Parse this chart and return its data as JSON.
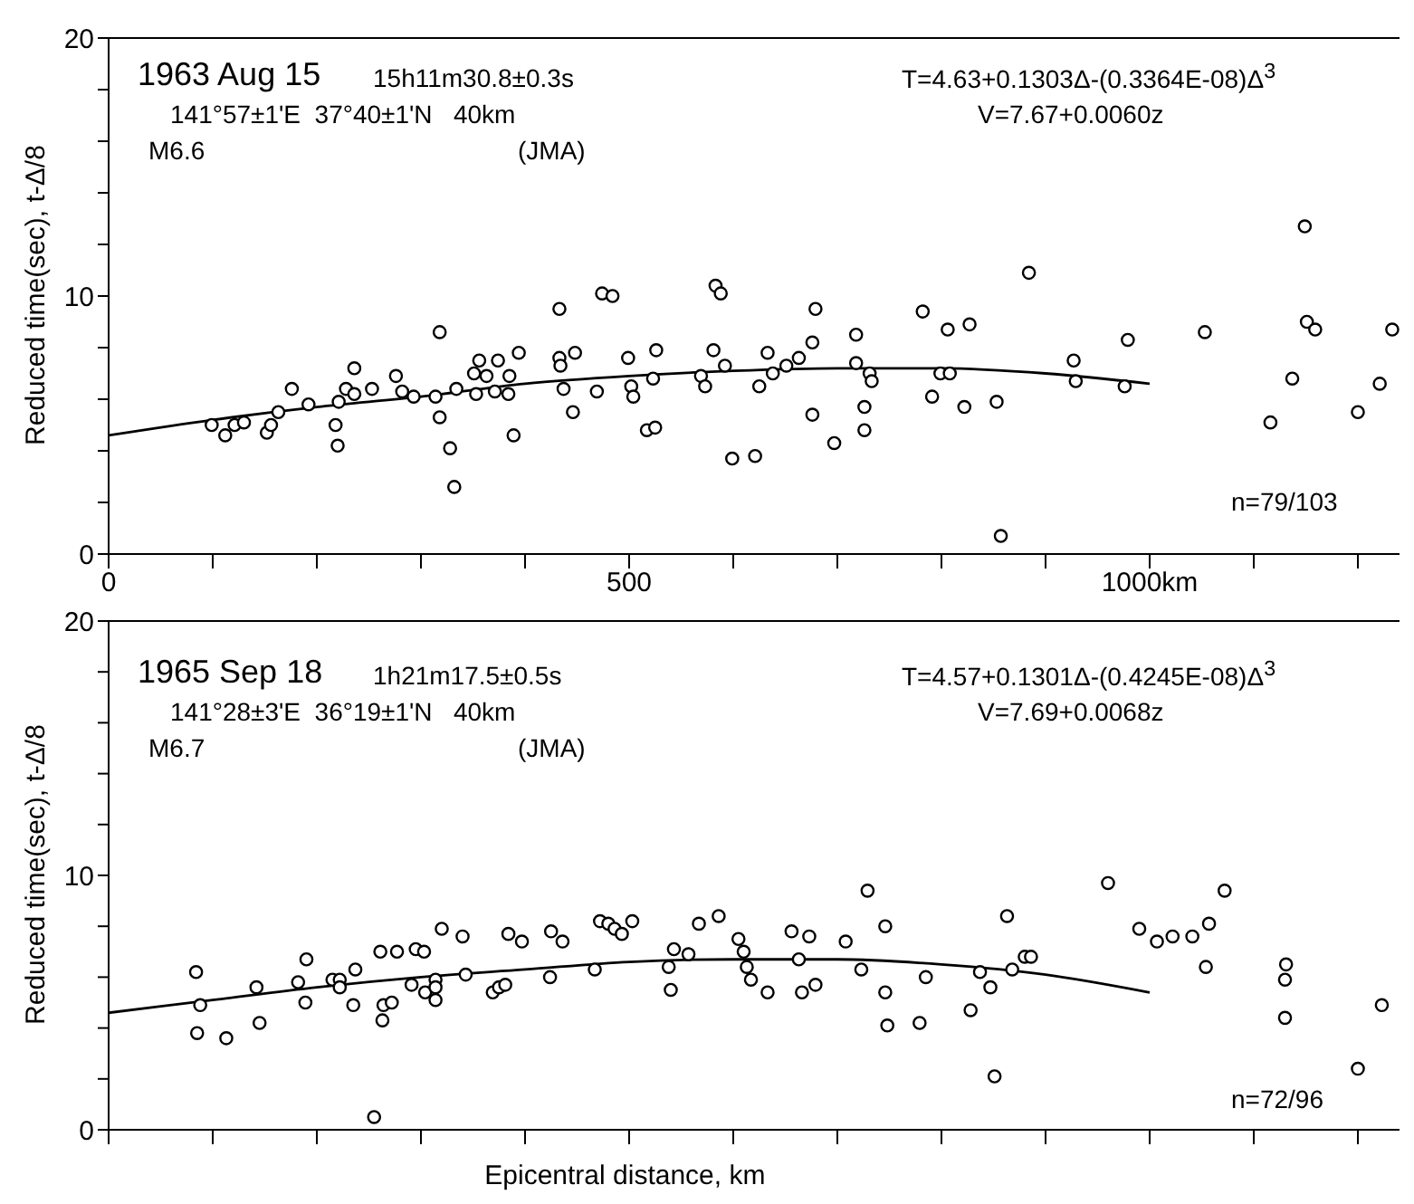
{
  "chart_data": [
    {
      "type": "scatter",
      "ylabel": "Reduced time(sec),  t-Δ/8",
      "annotations": [
        "1963 Aug 15",
        "15h11m30.8±0.3s",
        "141°57±1'E  37°40±1'N   40km",
        "M6.6",
        "(JMA)",
        "T=4.63+0.1303Δ-(0.3364E-08)Δ$^{3}$",
        "V=7.67+0.0060z",
        "n=79/103"
      ],
      "xlim": [
        0,
        1240
      ],
      "xticks": [
        0,
        {
          "value": 100,
          "label": null
        },
        {
          "value": 200,
          "label": null
        },
        {
          "value": 300,
          "label": null
        },
        {
          "value": 400,
          "label": null
        },
        500,
        {
          "value": 600,
          "label": null
        },
        {
          "value": 700,
          "label": null
        },
        {
          "value": 800,
          "label": null
        },
        {
          "value": 900,
          "label": null
        },
        {
          "value": 1000,
          "label": "1000km"
        },
        {
          "value": 1100,
          "label": null
        },
        {
          "value": 1200,
          "label": null
        }
      ],
      "ylim": [
        0,
        20
      ],
      "yticks": [
        0,
        {
          "value": 2,
          "label": null
        },
        {
          "value": 4,
          "label": null
        },
        {
          "value": 6,
          "label": null
        },
        {
          "value": 8,
          "label": null
        },
        10,
        {
          "value": 12,
          "label": null
        },
        {
          "value": 14,
          "label": null
        },
        {
          "value": 16,
          "label": null
        },
        {
          "value": 18,
          "label": null
        },
        20
      ],
      "series": [
        {
          "type": "scatter",
          "marker": "circle",
          "color": "#000000",
          "x": [
            99,
            112,
            121,
            130,
            152,
            156,
            163,
            176,
            192,
            218,
            220,
            221,
            228,
            236,
            236,
            253,
            276,
            282,
            293,
            314,
            318,
            318,
            328,
            332,
            334,
            351,
            353,
            356,
            363,
            371,
            374,
            384,
            385,
            389,
            394,
            433,
            433,
            434,
            437,
            446,
            448,
            469,
            474,
            484,
            499,
            502,
            504,
            517,
            525,
            523,
            526,
            569,
            573,
            581,
            583,
            588,
            592,
            599,
            621,
            625,
            633,
            638,
            651,
            663,
            676,
            679,
            676,
            697,
            718,
            718,
            731,
            733,
            726,
            726,
            782,
            791,
            799,
            808,
            806,
            827,
            822,
            853,
            857,
            884,
            927,
            929,
            976,
            979,
            1053,
            1116,
            1137,
            1149,
            1151,
            1159,
            1200,
            1221,
            1233
          ],
          "values": [
            5.0,
            4.6,
            5.0,
            5.1,
            4.7,
            5.0,
            5.5,
            6.4,
            5.8,
            5.0,
            4.2,
            5.9,
            6.4,
            6.2,
            7.2,
            6.4,
            6.9,
            6.3,
            6.1,
            6.1,
            8.6,
            5.3,
            4.1,
            2.6,
            6.4,
            7.0,
            6.2,
            7.5,
            6.9,
            6.3,
            7.5,
            6.2,
            6.9,
            4.6,
            7.8,
            9.5,
            7.6,
            7.3,
            6.4,
            5.5,
            7.8,
            6.3,
            10.1,
            10.0,
            7.6,
            6.5,
            6.1,
            4.8,
            4.9,
            6.8,
            7.9,
            6.9,
            6.5,
            7.9,
            10.4,
            10.1,
            7.3,
            3.7,
            3.8,
            6.5,
            7.8,
            7.0,
            7.3,
            7.6,
            8.2,
            9.5,
            5.4,
            4.3,
            8.5,
            7.4,
            7.0,
            6.7,
            5.7,
            4.8,
            9.4,
            6.1,
            7.0,
            7.0,
            8.7,
            8.9,
            5.7,
            5.9,
            0.7,
            10.9,
            7.5,
            6.7,
            6.5,
            8.3,
            8.6,
            5.1,
            6.8,
            12.7,
            9.0,
            8.7,
            5.5,
            6.6,
            8.7
          ]
        },
        {
          "type": "line",
          "marker": "none",
          "line_style": "solid",
          "color": "#000000",
          "x": [
            0,
            100,
            200,
            300,
            400,
            500,
            600,
            700,
            800,
            900,
            1000
          ],
          "values": [
            4.6,
            5.2,
            5.7,
            6.1,
            6.6,
            6.9,
            7.1,
            7.2,
            7.2,
            7.0,
            6.6
          ]
        }
      ]
    },
    {
      "type": "scatter",
      "xlabel": "Epicentral distance, km",
      "ylabel": "Reduced time(sec),  t-Δ/8",
      "tick_labels": "y",
      "annotations": [
        "1965 Sep 18",
        "1h21m17.5±0.5s",
        "141°28±3'E  36°19±1'N   40km",
        "M6.7",
        "(JMA)",
        "T=4.57+0.1301Δ-(0.4245E-08)Δ$^{3}$",
        "V=7.69+0.0068z",
        "n=72/96"
      ],
      "xlim": [
        0,
        1240
      ],
      "xticks": [
        {
          "value": 0,
          "label": null
        },
        {
          "value": 100,
          "label": null
        },
        {
          "value": 200,
          "label": null
        },
        {
          "value": 300,
          "label": null
        },
        {
          "value": 400,
          "label": null
        },
        {
          "value": 500,
          "label": null
        },
        {
          "value": 600,
          "label": null
        },
        {
          "value": 700,
          "label": null
        },
        {
          "value": 800,
          "label": null
        },
        {
          "value": 900,
          "label": null
        },
        {
          "value": 1000,
          "label": null
        },
        {
          "value": 1100,
          "label": null
        },
        {
          "value": 1200,
          "label": null
        }
      ],
      "ylim": [
        0,
        20
      ],
      "yticks": [
        0,
        {
          "value": 2,
          "label": null
        },
        {
          "value": 4,
          "label": null
        },
        {
          "value": 6,
          "label": null
        },
        {
          "value": 8,
          "label": null
        },
        10,
        {
          "value": 12,
          "label": null
        },
        {
          "value": 14,
          "label": null
        },
        {
          "value": 16,
          "label": null
        },
        {
          "value": 18,
          "label": null
        },
        20
      ],
      "series": [
        {
          "type": "scatter",
          "marker": "circle",
          "color": "#000000",
          "x": [
            84,
            88,
            85,
            113,
            142,
            145,
            182,
            190,
            189,
            215,
            222,
            222,
            237,
            235,
            261,
            277,
            264,
            272,
            263,
            255,
            295,
            303,
            291,
            304,
            314,
            314,
            314,
            320,
            340,
            343,
            369,
            375,
            381,
            384,
            397,
            425,
            424,
            436,
            467,
            472,
            480,
            486,
            493,
            503,
            538,
            540,
            543,
            557,
            567,
            586,
            605,
            610,
            613,
            617,
            633,
            656,
            663,
            666,
            673,
            679,
            708,
            723,
            729,
            746,
            746,
            748,
            779,
            785,
            828,
            837,
            847,
            851,
            863,
            868,
            880,
            886,
            960,
            990,
            1007,
            1022,
            1041,
            1057,
            1054,
            1072,
            1130,
            1131,
            1130,
            1200,
            1223
          ],
          "values": [
            6.2,
            4.9,
            3.8,
            3.6,
            5.6,
            4.2,
            5.8,
            6.7,
            5.0,
            5.9,
            5.9,
            5.6,
            6.3,
            4.9,
            7.0,
            7.0,
            4.9,
            5.0,
            4.3,
            0.5,
            7.1,
            7.0,
            5.7,
            5.4,
            5.9,
            5.6,
            5.1,
            7.9,
            7.6,
            6.1,
            5.4,
            5.6,
            5.7,
            7.7,
            7.4,
            7.8,
            6.0,
            7.4,
            6.3,
            8.2,
            8.1,
            7.9,
            7.7,
            8.2,
            6.4,
            5.5,
            7.1,
            6.9,
            8.1,
            8.4,
            7.5,
            7.0,
            6.4,
            5.9,
            5.4,
            7.8,
            6.7,
            5.4,
            7.6,
            5.7,
            7.4,
            6.3,
            9.4,
            8.0,
            5.4,
            4.1,
            4.2,
            6.0,
            4.7,
            6.2,
            5.6,
            2.1,
            8.4,
            6.3,
            6.8,
            6.8,
            9.7,
            7.9,
            7.4,
            7.6,
            7.6,
            8.1,
            6.4,
            9.4,
            5.9,
            6.5,
            4.4,
            2.4,
            4.9
          ]
        },
        {
          "type": "line",
          "marker": "none",
          "line_style": "solid",
          "color": "#000000",
          "x": [
            0,
            100,
            200,
            300,
            400,
            500,
            600,
            700,
            800,
            900,
            1000
          ],
          "values": [
            4.6,
            5.1,
            5.6,
            6.0,
            6.3,
            6.6,
            6.7,
            6.7,
            6.5,
            6.1,
            5.4
          ]
        }
      ]
    }
  ]
}
